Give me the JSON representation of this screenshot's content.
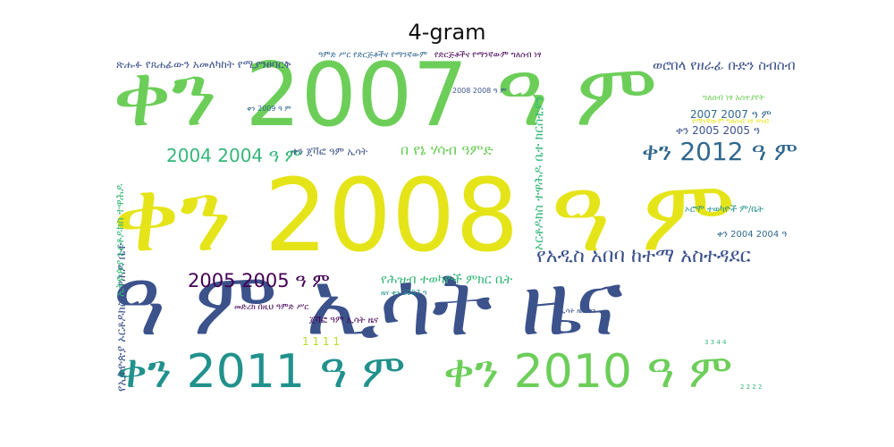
{
  "title": "4-gram",
  "palette": {
    "green": "#6cce59",
    "lime": "#b5de2b",
    "yellow": "#e5e419",
    "teal": "#21918c",
    "blue": "#3b528b",
    "navy": "#31688e",
    "purple": "#440154",
    "aqua": "#35b779"
  },
  "words": {
    "w_2007": "ቀን 2007 ዓ ም",
    "w_2008": "ቀን 2008 ዓ ም",
    "w_isat": "ዓ ም ኢሳት ዜና",
    "w_2011": "ቀን 2011 ዓ ም",
    "w_2010": "ቀን 2010 ዓ ም",
    "w_2004": "2004 2004 ዓ ም",
    "w_2005": "2005 2005 ዓ ም",
    "w_2012": "ቀን 2012 ዓ ም",
    "w_addis": "የአዲስ አበባ ከተማ አስተዳደር",
    "w_hsab": "በ የኔ ሃሳብ ዓምድ",
    "w_tekwami": "የሕዝብ ተወካዮች ምክር ቤት",
    "w_gebr": "ወሮበላ የዘራፊ ቡድን ስብስብ",
    "w_2007b": "2007 2007 ዓ ም",
    "w_2005b": "ቀን 2005 2005 ዓ",
    "w_ethio": "ጽሑፉ የጸሐፊውን አመለካከት የሚያንፀባርቅ",
    "w_1111": "1 1 1 1",
    "w_maneb": "ቀን ጀቫፎ ዓም ኢሳት",
    "w_2004b": "ቀን 2004 2004 ዓ",
    "w_arbanoch": "ኦሮሞ ተወካዮች ም/ቤት",
    "w_v1": "ኦርቶዶክስ ተዋሕዶ ቤተ ክርስቲያን",
    "w_v2": "የኢትዮጵያ ኦርቶዶክስ ተዋሕዶ ቤተ",
    "w_v3": "ኢትዮጵያ ኦርቶዶክስ ተዋሕዶ",
    "w_small1": "ዓምድ ሥር የድርጅቶችና የማንኛውም",
    "w_small2": "የድርጅቶችና የማንኛውም ግለሰብ ነፃ",
    "w_small3": "ግለሰብ ነፃ አስተያየት",
    "w_small4": "ጀቫፎ ዓም ኢሳት ዜና",
    "w_small5": "2008 2008 ዓ ም",
    "w_small6": "ቀን 2009 ዓ ም",
    "w_small7": "የማንኛውም ግለሰብ ነፃ ሃሳብ",
    "w_small8": "መድረክ በዚህ ዓምድ ሥር",
    "w_small9": "3 3 4 4",
    "w_small10": "ዜና ቀን 2007 ዓ",
    "w_small11": "ኢሳት ዜና ቀን",
    "w_small12": "2 2 2 2"
  }
}
